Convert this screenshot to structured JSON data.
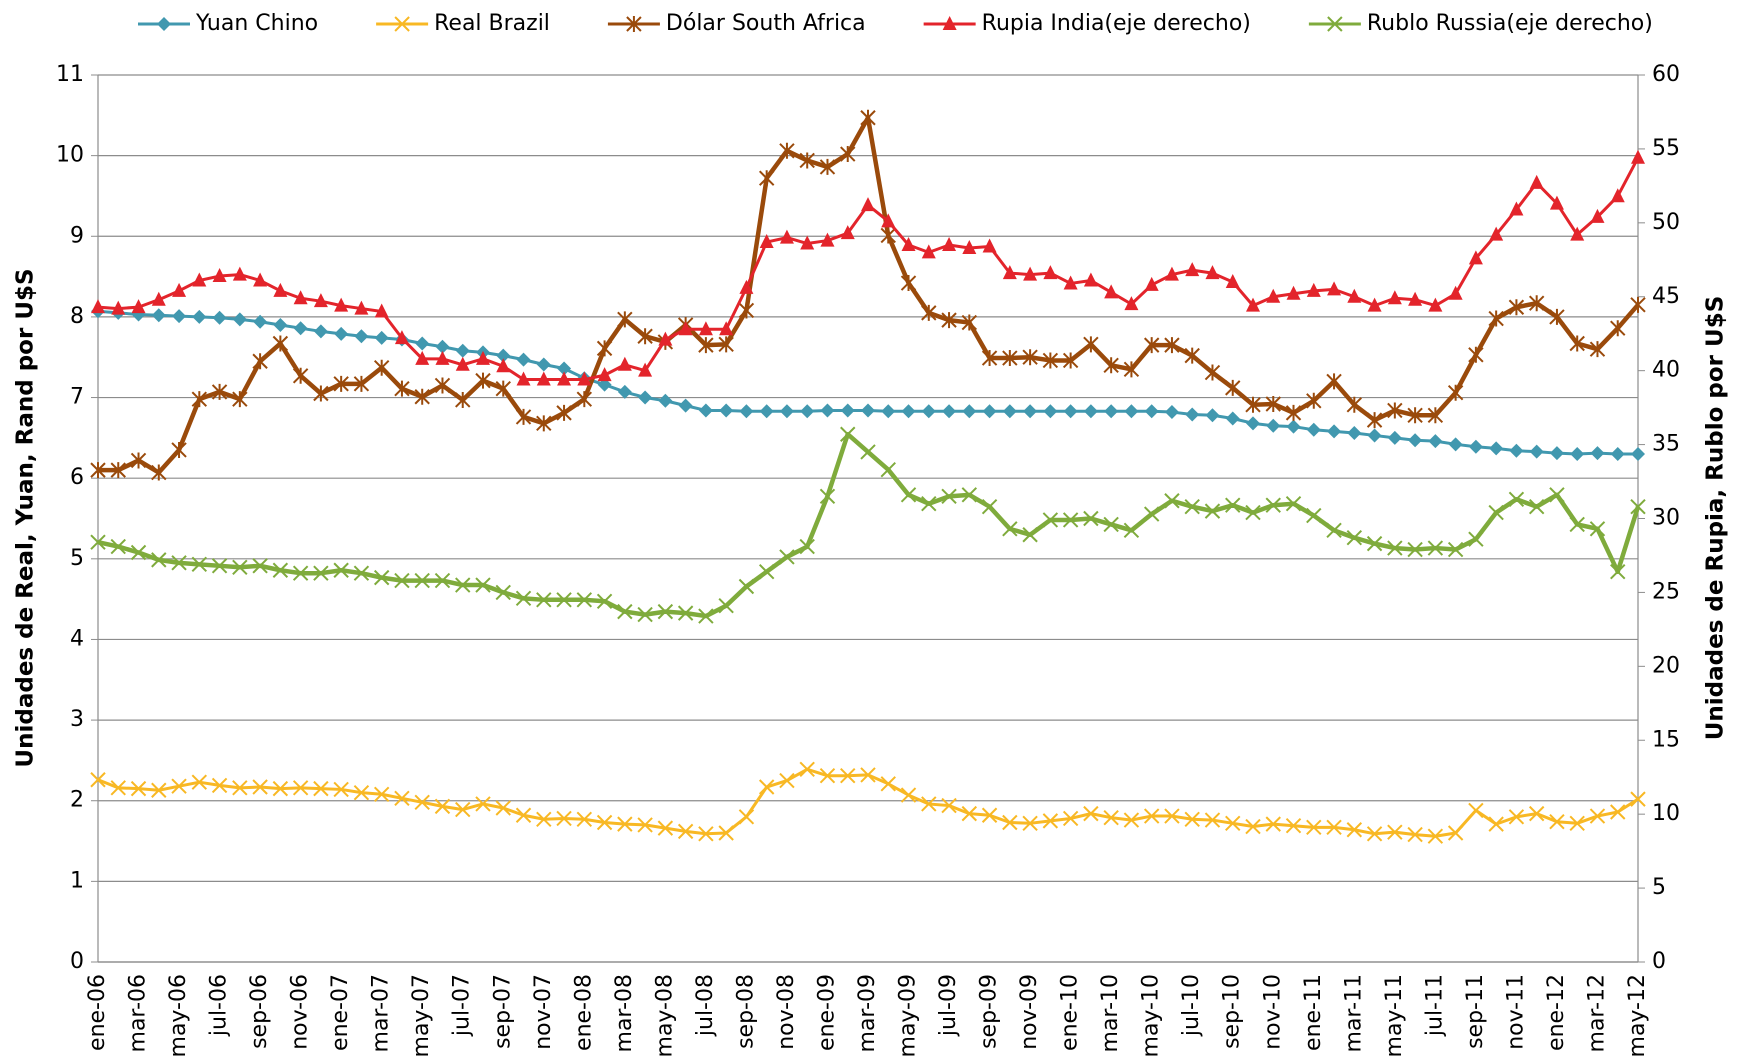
{
  "chart_data": {
    "type": "line",
    "y_label": "Unidades de Real, Yuan, Rand por U$S",
    "y2_label": "Unidades de Rupia, Rublo por U$S",
    "categories": [
      "ene-06",
      null,
      "mar-06",
      null,
      "may-06",
      null,
      "jul-06",
      null,
      "sep-06",
      null,
      "nov-06",
      null,
      "ene-07",
      null,
      "mar-07",
      null,
      "may-07",
      null,
      "jul-07",
      null,
      "sep-07",
      null,
      "nov-07",
      null,
      "ene-08",
      null,
      "mar-08",
      null,
      "may-08",
      null,
      "jul-08",
      null,
      "sep-08",
      null,
      "nov-08",
      null,
      "ene-09",
      null,
      "mar-09",
      null,
      "may-09",
      null,
      "jul-09",
      null,
      "sep-09",
      null,
      "nov-09",
      null,
      "ene-10",
      null,
      "mar-10",
      null,
      "may-10",
      null,
      "jul-10",
      null,
      "sep-10",
      null,
      "nov-10",
      null,
      "ene-11",
      null,
      "mar-11",
      null,
      "may-11",
      null,
      "jul-11",
      null,
      "sep-11",
      null,
      "nov-11",
      null,
      "ene-12",
      null,
      "mar-12",
      null,
      "may-12"
    ],
    "ylim": [
      0,
      11
    ],
    "yticks": [
      0,
      1,
      2,
      3,
      4,
      5,
      6,
      7,
      8,
      9,
      10,
      11
    ],
    "y2lim": [
      0,
      60
    ],
    "y2ticks": [
      0,
      5,
      10,
      15,
      20,
      25,
      30,
      35,
      40,
      45,
      50,
      55,
      60
    ],
    "grid": true,
    "legend": "top",
    "series": [
      {
        "name": "Yuan Chino",
        "color": "#4198af",
        "marker": "diamond",
        "values": [
          8.07,
          8.05,
          8.03,
          8.02,
          8.01,
          8.0,
          7.99,
          7.97,
          7.94,
          7.9,
          7.86,
          7.82,
          7.79,
          7.76,
          7.74,
          7.72,
          7.67,
          7.63,
          7.58,
          7.56,
          7.52,
          7.47,
          7.41,
          7.36,
          7.24,
          7.16,
          7.07,
          7.0,
          6.96,
          6.9,
          6.84,
          6.84,
          6.83,
          6.83,
          6.83,
          6.83,
          6.84,
          6.84,
          6.84,
          6.83,
          6.83,
          6.83,
          6.83,
          6.83,
          6.83,
          6.83,
          6.83,
          6.83,
          6.83,
          6.83,
          6.83,
          6.83,
          6.83,
          6.82,
          6.79,
          6.78,
          6.74,
          6.68,
          6.65,
          6.64,
          6.6,
          6.58,
          6.56,
          6.53,
          6.5,
          6.47,
          6.46,
          6.42,
          6.39,
          6.37,
          6.34,
          6.33,
          6.31,
          6.3,
          6.31,
          6.3,
          6.3
        ]
      },
      {
        "name": "Real Brazil",
        "color": "#f8b824",
        "marker": "x",
        "values": [
          2.26,
          2.16,
          2.15,
          2.13,
          2.18,
          2.23,
          2.19,
          2.16,
          2.17,
          2.15,
          2.16,
          2.15,
          2.14,
          2.1,
          2.08,
          2.03,
          1.98,
          1.93,
          1.89,
          1.96,
          1.91,
          1.82,
          1.77,
          1.78,
          1.77,
          1.73,
          1.71,
          1.7,
          1.66,
          1.62,
          1.59,
          1.6,
          1.8,
          2.17,
          2.25,
          2.39,
          2.31,
          2.31,
          2.32,
          2.21,
          2.07,
          1.96,
          1.94,
          1.84,
          1.82,
          1.73,
          1.72,
          1.75,
          1.78,
          1.84,
          1.79,
          1.76,
          1.81,
          1.81,
          1.77,
          1.76,
          1.72,
          1.68,
          1.71,
          1.69,
          1.67,
          1.67,
          1.64,
          1.59,
          1.61,
          1.58,
          1.56,
          1.6,
          1.88,
          1.71,
          1.8,
          1.84,
          1.74,
          1.72,
          1.81,
          1.86,
          2.02
        ]
      },
      {
        "name": "Dólar South Africa",
        "color": "#9a4a0b",
        "marker": "asterisk",
        "values": [
          6.1,
          6.1,
          6.22,
          6.07,
          6.35,
          6.98,
          7.07,
          6.98,
          7.45,
          7.67,
          7.27,
          7.05,
          7.17,
          7.17,
          7.37,
          7.11,
          7.01,
          7.15,
          6.97,
          7.21,
          7.11,
          6.76,
          6.68,
          6.81,
          6.98,
          7.61,
          7.97,
          7.76,
          7.69,
          7.9,
          7.65,
          7.66,
          8.08,
          9.72,
          10.06,
          9.94,
          9.86,
          10.02,
          10.47,
          9.01,
          8.42,
          8.05,
          7.96,
          7.93,
          7.49,
          7.49,
          7.5,
          7.46,
          7.46,
          7.66,
          7.4,
          7.35,
          7.65,
          7.65,
          7.52,
          7.31,
          7.12,
          6.91,
          6.92,
          6.81,
          6.96,
          7.2,
          6.91,
          6.72,
          6.84,
          6.78,
          6.78,
          7.06,
          7.53,
          7.98,
          8.12,
          8.17,
          8.0,
          7.67,
          7.6,
          7.86,
          8.15
        ]
      },
      {
        "name": "Rupia India(eje derecho)",
        "color": "#e3242b",
        "marker": "triangle",
        "axis": "y2",
        "values": [
          44.3,
          44.2,
          44.3,
          44.8,
          45.4,
          46.1,
          46.4,
          46.5,
          46.1,
          45.4,
          44.9,
          44.7,
          44.4,
          44.2,
          44.0,
          42.2,
          40.8,
          40.8,
          40.4,
          40.8,
          40.3,
          39.4,
          39.4,
          39.4,
          39.4,
          39.7,
          40.4,
          40.0,
          42.1,
          42.8,
          42.8,
          42.8,
          45.6,
          48.7,
          49.0,
          48.6,
          48.8,
          49.3,
          51.2,
          50.1,
          48.5,
          48.0,
          48.5,
          48.3,
          48.4,
          46.6,
          46.5,
          46.6,
          45.9,
          46.1,
          45.3,
          44.5,
          45.8,
          46.5,
          46.8,
          46.6,
          46.0,
          44.4,
          45.0,
          45.2,
          45.4,
          45.5,
          45.0,
          44.4,
          44.9,
          44.8,
          44.4,
          45.2,
          47.6,
          49.2,
          50.9,
          52.7,
          51.3,
          49.2,
          50.4,
          51.8,
          54.4
        ]
      },
      {
        "name": "Rublo Russia(eje derecho)",
        "color": "#7fab3c",
        "marker": "x",
        "axis": "y2",
        "values": [
          28.4,
          28.1,
          27.7,
          27.2,
          27.0,
          26.9,
          26.8,
          26.7,
          26.8,
          26.5,
          26.3,
          26.3,
          26.5,
          26.3,
          26.0,
          25.8,
          25.8,
          25.8,
          25.5,
          25.5,
          25.0,
          24.6,
          24.5,
          24.5,
          24.5,
          24.4,
          23.7,
          23.5,
          23.7,
          23.6,
          23.4,
          24.1,
          25.4,
          26.4,
          27.4,
          28.1,
          31.5,
          35.7,
          34.5,
          33.3,
          31.6,
          31.0,
          31.5,
          31.6,
          30.8,
          29.3,
          28.9,
          29.9,
          29.9,
          30.0,
          29.6,
          29.2,
          30.3,
          31.2,
          30.8,
          30.5,
          30.9,
          30.4,
          30.9,
          31.0,
          30.2,
          29.2,
          28.7,
          28.3,
          28.0,
          27.9,
          28.0,
          27.9,
          28.6,
          30.4,
          31.3,
          30.8,
          31.6,
          29.6,
          29.3,
          26.4,
          30.8
        ]
      }
    ]
  }
}
